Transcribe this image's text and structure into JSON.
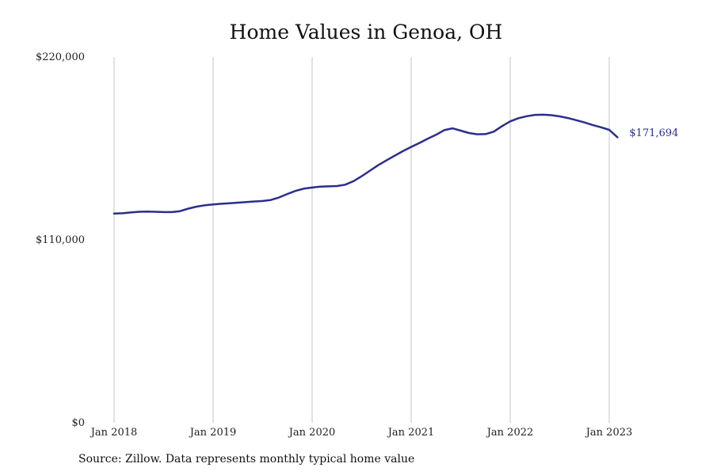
{
  "chart_data": {
    "type": "line",
    "title": "Home Values in Genoa, OH",
    "xlabel": "",
    "ylabel": "",
    "ylim": [
      0,
      220000
    ],
    "yticks": [
      "$0",
      "$110,000",
      "$220,000"
    ],
    "yticks_values": [
      0,
      110000,
      220000
    ],
    "xticks": [
      "Jan 2018",
      "Jan 2019",
      "Jan 2020",
      "Jan 2021",
      "Jan 2022",
      "Jan 2023"
    ],
    "xticks_values": [
      "2018-01",
      "2019-01",
      "2020-01",
      "2021-01",
      "2022-01",
      "2023-01"
    ],
    "xlim": [
      "2018-01",
      "2023-02"
    ],
    "grid": "vertical",
    "line_color": "#2b2e8c",
    "series": [
      {
        "x": [
          "2018-01",
          "2018-02",
          "2018-03",
          "2018-04",
          "2018-05",
          "2018-06",
          "2018-07",
          "2018-08",
          "2018-09",
          "2018-10",
          "2018-11",
          "2018-12",
          "2019-01",
          "2019-02",
          "2019-03",
          "2019-04",
          "2019-05",
          "2019-06",
          "2019-07",
          "2019-08",
          "2019-09",
          "2019-10",
          "2019-11",
          "2019-12",
          "2020-01",
          "2020-02",
          "2020-03",
          "2020-04",
          "2020-05",
          "2020-06",
          "2020-07",
          "2020-08",
          "2020-09",
          "2020-10",
          "2020-11",
          "2020-12",
          "2021-01",
          "2021-02",
          "2021-03",
          "2021-04",
          "2021-05",
          "2021-06",
          "2021-07",
          "2021-08",
          "2021-09",
          "2021-10",
          "2021-11",
          "2021-12",
          "2022-01",
          "2022-02",
          "2022-03",
          "2022-04",
          "2022-05",
          "2022-06",
          "2022-07",
          "2022-08",
          "2022-09",
          "2022-10",
          "2022-11",
          "2022-12",
          "2023-01",
          "2023-02"
        ],
        "y": [
          125800,
          126000,
          126500,
          126900,
          127000,
          126900,
          126700,
          126700,
          127300,
          128800,
          130000,
          130800,
          131300,
          131700,
          132000,
          132400,
          132700,
          133100,
          133400,
          134000,
          135500,
          137600,
          139500,
          140800,
          141500,
          142000,
          142200,
          142400,
          143200,
          145300,
          148300,
          151600,
          154900,
          157800,
          160600,
          163400,
          165900,
          168300,
          170800,
          173200,
          176000,
          177100,
          175700,
          174300,
          173500,
          173600,
          175100,
          178400,
          181300,
          183200,
          184400,
          185200,
          185300,
          185000,
          184300,
          183300,
          182000,
          180600,
          179100,
          177700,
          176200,
          171694
        ]
      }
    ],
    "end_label": "$171,694"
  },
  "footer": {
    "source": "Source: Zillow. Data represents monthly typical home value"
  }
}
